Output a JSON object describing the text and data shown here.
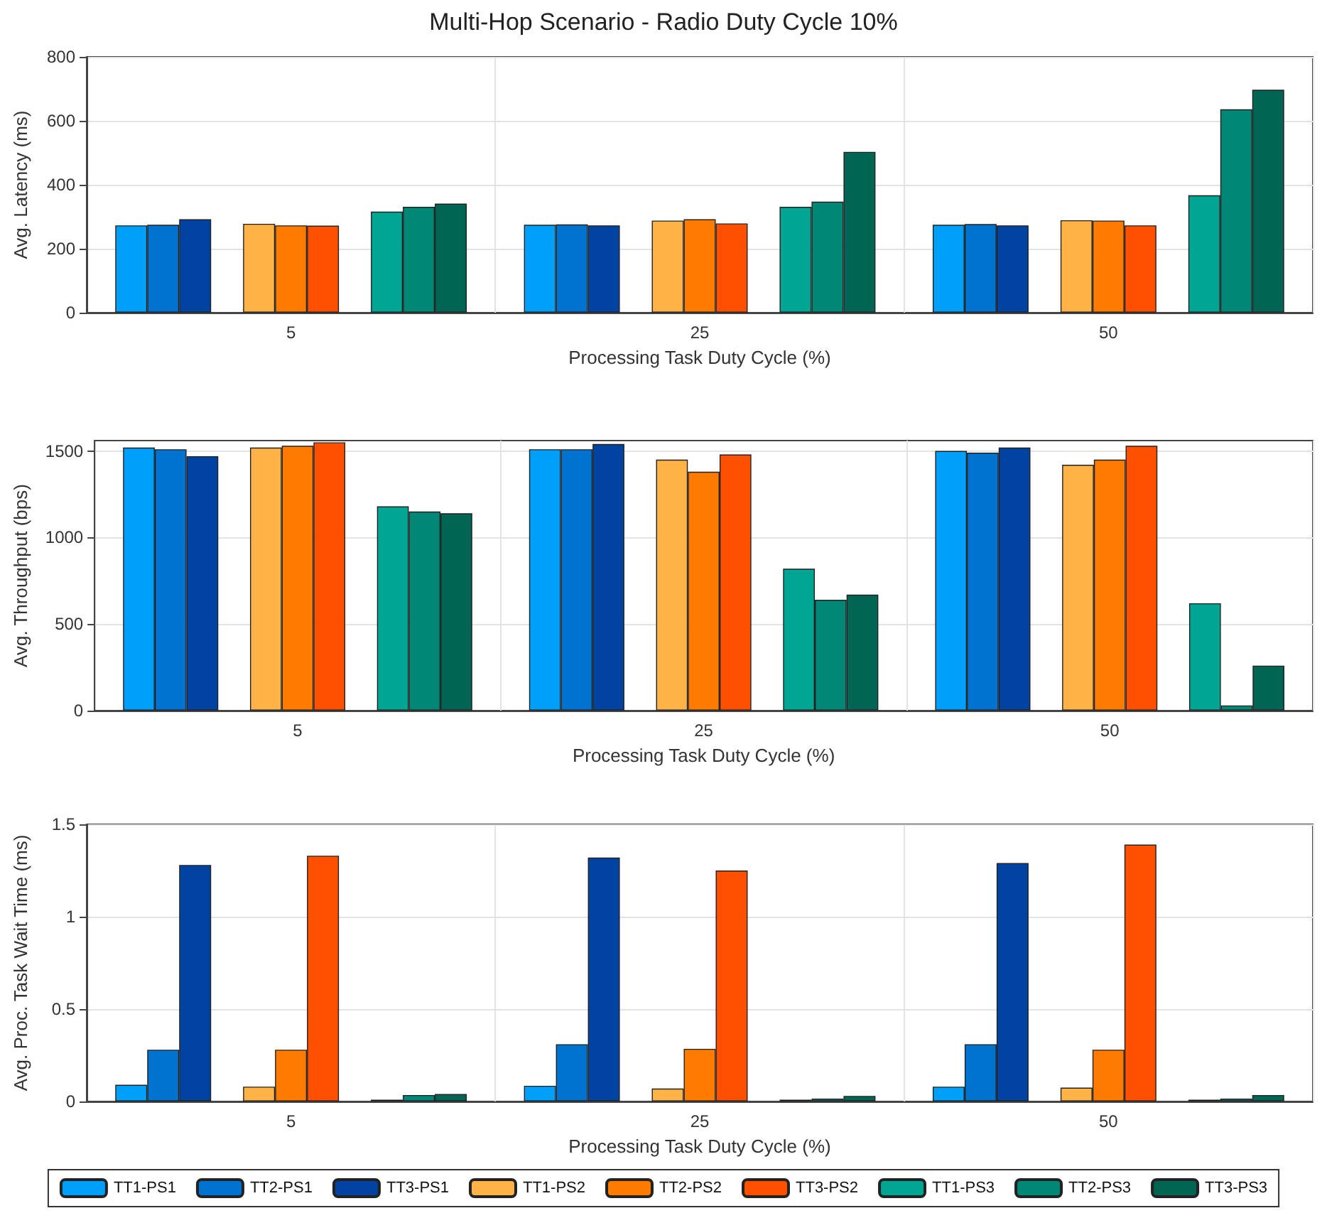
{
  "chart_data": [
    {
      "type": "bar",
      "title": "Multi-Hop Scenario - Radio Duty Cycle 10%",
      "xlabel": "Processing Task Duty Cycle (%)",
      "ylabel": "Avg. Latency (ms)",
      "categories": [
        "5",
        "25",
        "50"
      ],
      "ylim": [
        0,
        800
      ],
      "yticks": [
        0,
        200,
        400,
        600,
        800
      ],
      "grid": true,
      "legend": false,
      "series": [
        {
          "color": "#00a0fa",
          "values": [
            273,
            275,
            275
          ]
        },
        {
          "color": "#0072d0",
          "values": [
            275,
            276,
            277
          ]
        },
        {
          "color": "#0043a0",
          "values": [
            292,
            273,
            273
          ]
        },
        {
          "color": "#ffb347",
          "values": [
            278,
            288,
            289
          ]
        },
        {
          "color": "#ff7b00",
          "values": [
            273,
            292,
            288
          ]
        },
        {
          "color": "#ff5000",
          "values": [
            272,
            279,
            273
          ]
        },
        {
          "color": "#00a693",
          "values": [
            316,
            331,
            367
          ]
        },
        {
          "color": "#008776",
          "values": [
            331,
            347,
            636
          ]
        },
        {
          "color": "#006653",
          "values": [
            341,
            503,
            697
          ]
        }
      ]
    },
    {
      "type": "bar",
      "xlabel": "Processing Task Duty Cycle (%)",
      "ylabel": "Avg. Throughput (bps)",
      "categories": [
        "5",
        "25",
        "50"
      ],
      "ylim": [
        0,
        1560
      ],
      "yticks": [
        0,
        500,
        1000,
        1500
      ],
      "grid": true,
      "legend": false,
      "series": [
        {
          "color": "#00a0fa",
          "values": [
            1520,
            1510,
            1500
          ]
        },
        {
          "color": "#0072d0",
          "values": [
            1510,
            1510,
            1490
          ]
        },
        {
          "color": "#0043a0",
          "values": [
            1470,
            1540,
            1520
          ]
        },
        {
          "color": "#ffb347",
          "values": [
            1520,
            1450,
            1420
          ]
        },
        {
          "color": "#ff7b00",
          "values": [
            1530,
            1380,
            1450
          ]
        },
        {
          "color": "#ff5000",
          "values": [
            1550,
            1480,
            1530
          ]
        },
        {
          "color": "#00a693",
          "values": [
            1180,
            820,
            620
          ]
        },
        {
          "color": "#008776",
          "values": [
            1150,
            640,
            30
          ]
        },
        {
          "color": "#006653",
          "values": [
            1140,
            670,
            260
          ]
        }
      ]
    },
    {
      "type": "bar",
      "xlabel": "Processing Task Duty Cycle (%)",
      "ylabel": "Avg. Proc. Task Wait Time (ms)",
      "categories": [
        "5",
        "25",
        "50"
      ],
      "ylim": [
        0,
        1.5
      ],
      "yticks": [
        0,
        0.5,
        1,
        1.5
      ],
      "grid": true,
      "legend": "bottom",
      "series": [
        {
          "name": "TT1-PS1",
          "color": "#00a0fa",
          "values": [
            0.09,
            0.085,
            0.08
          ]
        },
        {
          "name": "TT2-PS1",
          "color": "#0072d0",
          "values": [
            0.28,
            0.31,
            0.31
          ]
        },
        {
          "name": "TT3-PS1",
          "color": "#0043a0",
          "values": [
            1.28,
            1.32,
            1.29
          ]
        },
        {
          "name": "TT1-PS2",
          "color": "#ffb347",
          "values": [
            0.08,
            0.07,
            0.075
          ]
        },
        {
          "name": "TT2-PS2",
          "color": "#ff7b00",
          "values": [
            0.28,
            0.285,
            0.28
          ]
        },
        {
          "name": "TT3-PS2",
          "color": "#ff5000",
          "values": [
            1.33,
            1.25,
            1.39
          ]
        },
        {
          "name": "TT1-PS3",
          "color": "#00a693",
          "values": [
            0.01,
            0.01,
            0.01
          ]
        },
        {
          "name": "TT2-PS3",
          "color": "#008776",
          "values": [
            0.035,
            0.015,
            0.015
          ]
        },
        {
          "name": "TT3-PS3",
          "color": "#006653",
          "values": [
            0.04,
            0.03,
            0.035
          ]
        }
      ]
    }
  ]
}
